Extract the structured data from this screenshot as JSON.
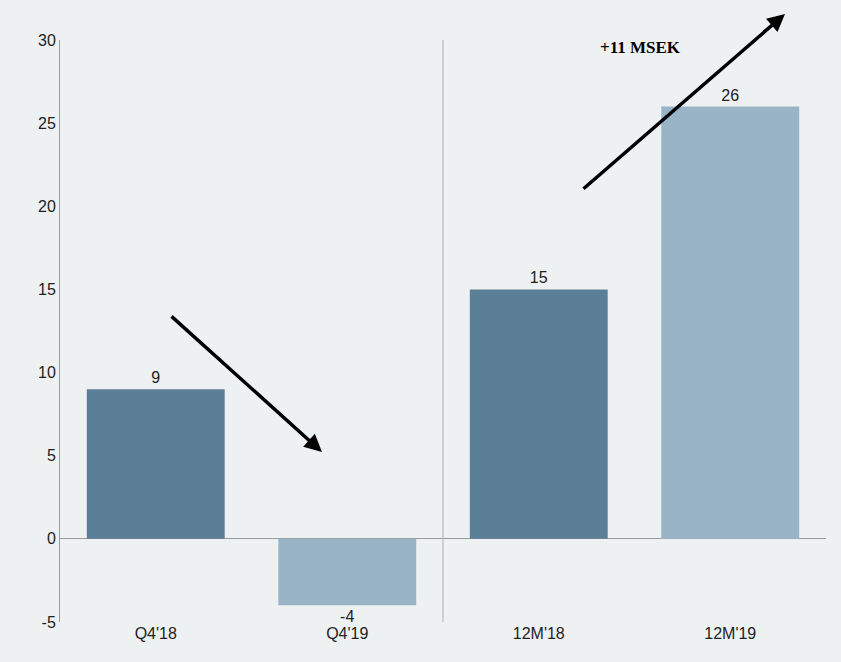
{
  "chart_data": {
    "type": "bar",
    "categories": [
      "Q4'18",
      "Q4'19",
      "12M'18",
      "12M'19"
    ],
    "values": [
      9,
      -4,
      15,
      26
    ],
    "colors": [
      "#5a7f96",
      "#9ab4c7",
      "#5a7f96",
      "#9ab4c7"
    ],
    "ylim": [
      -5,
      30
    ],
    "yticks": [
      -5,
      0,
      5,
      10,
      15,
      20,
      25,
      30
    ],
    "grid": false,
    "data_labels": true,
    "annotations": [
      "+11 MSEK"
    ]
  }
}
